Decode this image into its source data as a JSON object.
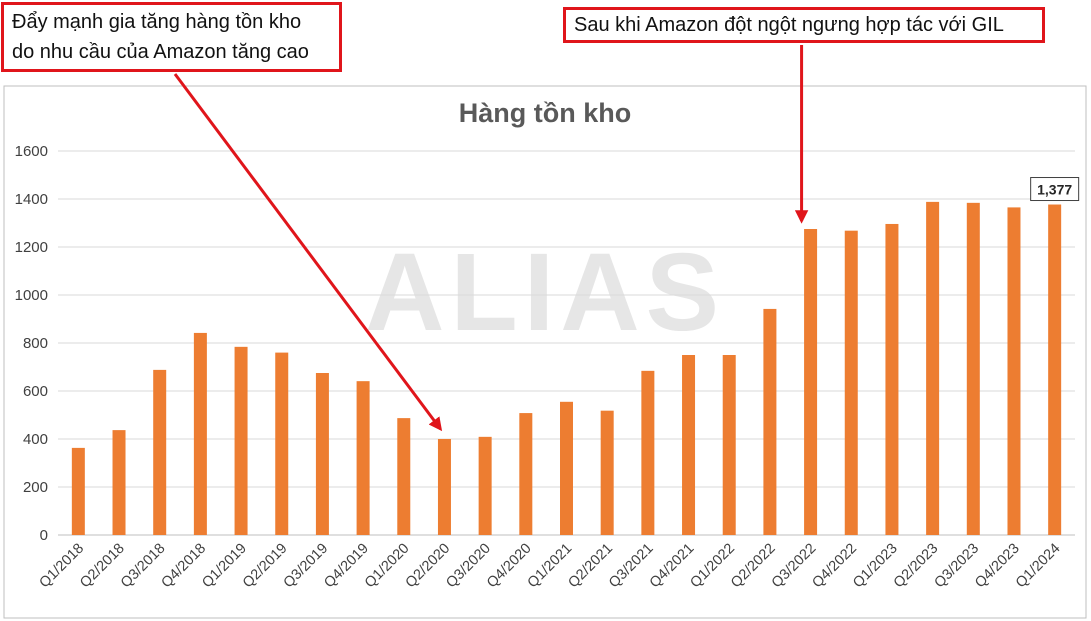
{
  "chart_data": {
    "type": "bar",
    "title": "Hàng tồn kho",
    "watermark": "ALIAS",
    "ylim": [
      0,
      1600
    ],
    "yticks": [
      0,
      200,
      400,
      600,
      800,
      1000,
      1200,
      1400,
      1600
    ],
    "categories": [
      "Q1/2018",
      "Q2/2018",
      "Q3/2018",
      "Q4/2018",
      "Q1/2019",
      "Q2/2019",
      "Q3/2019",
      "Q4/2019",
      "Q1/2020",
      "Q2/2020",
      "Q3/2020",
      "Q4/2020",
      "Q1/2021",
      "Q2/2021",
      "Q3/2021",
      "Q4/2021",
      "Q1/2022",
      "Q2/2022",
      "Q3/2022",
      "Q4/2022",
      "Q1/2023",
      "Q2/2023",
      "Q3/2023",
      "Q4/2023",
      "Q1/2024"
    ],
    "values": [
      363,
      437,
      688,
      842,
      784,
      760,
      675,
      641,
      487,
      400,
      409,
      508,
      555,
      518,
      684,
      750,
      750,
      942,
      1275,
      1268,
      1296,
      1388,
      1384,
      1365,
      1377
    ],
    "bar_color": "#ed7d31",
    "grid": true,
    "legend": "none",
    "data_label": {
      "category": "Q1/2024",
      "text": "1,377"
    }
  },
  "callouts": {
    "left_line1": "Đẩy mạnh gia tăng hàng tồn kho",
    "left_line2": "do nhu cầu của Amazon tăng cao",
    "left_points_to": "Q2/2020",
    "right_text": "Sau khi Amazon đột ngột ngưng hợp tác với GIL",
    "right_points_to": "Q3/2022",
    "color": "#e0151b"
  }
}
